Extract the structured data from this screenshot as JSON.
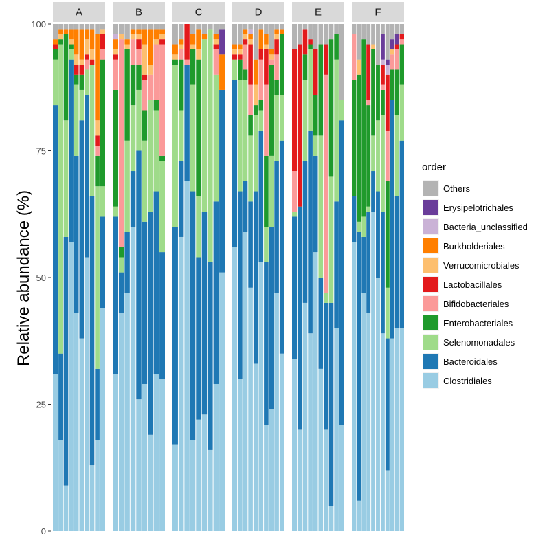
{
  "chart_data": {
    "type": "stacked-bar",
    "facets": [
      "A",
      "B",
      "C",
      "D",
      "E",
      "F"
    ],
    "ylabel": "Relative abundance (%)",
    "xlabel": "",
    "ylim": [
      0,
      100
    ],
    "yticks": [
      0,
      25,
      50,
      75,
      100
    ],
    "legend": {
      "title": "order",
      "position": "right",
      "entries": [
        {
          "name": "Others",
          "color": "#B3B3B3"
        },
        {
          "name": "Erysipelotrichales",
          "color": "#6A3D9A"
        },
        {
          "name": "Bacteria_unclassified",
          "color": "#CAB2D6"
        },
        {
          "name": "Burkholderiales",
          "color": "#FF7F00"
        },
        {
          "name": "Verrucomicrobiales",
          "color": "#FDBF6F"
        },
        {
          "name": "Lactobacillales",
          "color": "#E31A1C"
        },
        {
          "name": "Bifidobacteriales",
          "color": "#FB9A99"
        },
        {
          "name": "Enterobacteriales",
          "color": "#1F9A2C"
        },
        {
          "name": "Selenomonadales",
          "color": "#9FDB8A"
        },
        {
          "name": "Bacteroidales",
          "color": "#1F78B4"
        },
        {
          "name": "Clostridiales",
          "color": "#99CCE3"
        }
      ]
    },
    "stack_order": [
      "Clostridiales",
      "Bacteroidales",
      "Selenomonadales",
      "Enterobacteriales",
      "Bifidobacteriales",
      "Lactobacillales",
      "Verrucomicrobiales",
      "Burkholderiales",
      "Bacteria_unclassified",
      "Erysipelotrichales",
      "Others"
    ],
    "samples": {
      "A": [
        [
          31,
          53,
          9,
          2,
          0,
          1,
          0,
          1,
          0,
          0,
          3
        ],
        [
          18,
          17,
          61,
          1,
          0,
          0,
          1,
          1,
          0,
          0,
          1
        ],
        [
          9,
          49,
          23,
          17,
          0,
          0,
          0,
          1,
          0,
          0,
          1
        ],
        [
          57,
          36,
          2,
          1,
          0,
          0,
          1,
          2,
          0,
          0,
          1
        ],
        [
          43,
          31,
          14,
          2,
          0,
          2,
          2,
          5,
          0,
          0,
          1
        ],
        [
          38,
          43,
          6,
          3,
          0,
          2,
          1,
          6,
          0,
          0,
          1
        ],
        [
          54,
          32,
          5,
          0,
          2,
          1,
          3,
          2,
          0,
          0,
          1
        ],
        [
          13,
          53,
          26,
          0,
          0,
          1,
          2,
          4,
          0,
          0,
          1
        ],
        [
          18,
          14,
          36,
          6,
          2,
          2,
          3,
          17,
          0,
          0,
          2
        ],
        [
          44,
          18,
          6,
          25,
          2,
          3,
          1,
          0,
          0,
          0,
          1
        ]
      ],
      "B": [
        [
          31,
          31,
          2,
          23,
          6,
          1,
          1,
          2,
          1,
          0,
          2
        ],
        [
          43,
          8,
          3,
          2,
          41,
          0,
          1,
          0,
          0,
          0,
          2
        ],
        [
          47,
          12,
          18,
          18,
          0,
          0,
          1,
          1,
          0,
          0,
          3
        ],
        [
          60,
          11,
          13,
          8,
          5,
          0,
          1,
          1,
          0,
          0,
          1
        ],
        [
          26,
          49,
          12,
          5,
          3,
          2,
          1,
          1,
          0,
          0,
          1
        ],
        [
          29,
          32,
          16,
          6,
          6,
          1,
          6,
          3,
          0,
          0,
          1
        ],
        [
          19,
          44,
          22,
          0,
          5,
          0,
          2,
          7,
          0,
          0,
          1
        ],
        [
          31,
          36,
          16,
          2,
          11,
          0,
          1,
          2,
          0,
          0,
          1
        ],
        [
          30,
          25,
          18,
          1,
          22,
          1,
          1,
          1,
          0,
          0,
          1
        ]
      ],
      "C": [
        [
          17,
          43,
          32,
          1,
          0,
          0,
          1,
          2,
          0,
          0,
          4
        ],
        [
          58,
          15,
          10,
          10,
          2,
          0,
          1,
          1,
          0,
          0,
          3
        ],
        [
          69,
          23,
          0,
          0,
          1,
          7,
          0,
          0,
          0,
          0,
          0
        ],
        [
          18,
          49,
          21,
          7,
          0,
          0,
          1,
          2,
          0,
          0,
          2
        ],
        [
          22,
          32,
          12,
          27,
          0,
          0,
          2,
          4,
          0,
          0,
          1
        ],
        [
          23,
          40,
          34,
          0,
          0,
          0,
          0,
          1,
          0,
          0,
          2
        ],
        [
          16,
          37,
          46,
          0,
          0,
          0,
          0,
          0,
          0,
          0,
          1
        ],
        [
          29,
          36,
          25,
          0,
          5,
          1,
          1,
          1,
          0,
          0,
          2
        ],
        [
          51,
          36,
          0,
          0,
          0,
          0,
          0,
          7,
          0,
          5,
          1
        ]
      ],
      "D": [
        [
          56,
          33,
          4,
          0,
          0,
          1,
          1,
          1,
          0,
          0,
          4
        ],
        [
          30,
          37,
          22,
          4,
          0,
          1,
          1,
          1,
          0,
          0,
          4
        ],
        [
          59,
          10,
          20,
          2,
          5,
          1,
          1,
          1,
          0,
          0,
          1
        ],
        [
          48,
          17,
          13,
          4,
          6,
          8,
          1,
          1,
          1,
          0,
          1
        ],
        [
          33,
          34,
          15,
          2,
          0,
          0,
          4,
          5,
          0,
          0,
          7
        ],
        [
          53,
          26,
          4,
          2,
          8,
          2,
          0,
          4,
          0,
          0,
          1
        ],
        [
          21,
          32,
          7,
          14,
          14,
          7,
          1,
          2,
          0,
          0,
          2
        ],
        [
          24,
          36,
          14,
          18,
          1,
          0,
          1,
          1,
          0,
          0,
          5
        ],
        [
          47,
          26,
          13,
          3,
          5,
          3,
          1,
          1,
          0,
          0,
          1
        ],
        [
          35,
          42,
          9,
          12,
          0,
          0,
          0,
          1,
          0,
          0,
          1
        ]
      ],
      "E": [
        [
          34,
          28,
          1,
          0,
          8,
          24,
          0,
          0,
          0,
          0,
          5
        ],
        [
          20,
          44,
          0,
          0,
          0,
          32,
          0,
          0,
          0,
          0,
          4
        ],
        [
          45,
          28,
          16,
          5,
          0,
          5,
          0,
          0,
          0,
          0,
          1
        ],
        [
          39,
          40,
          16,
          1,
          0,
          1,
          0,
          0,
          0,
          0,
          3
        ],
        [
          55,
          19,
          4,
          8,
          0,
          9,
          0,
          0,
          0,
          0,
          5
        ],
        [
          32,
          18,
          28,
          18,
          0,
          0,
          0,
          0,
          0,
          0,
          4
        ],
        [
          20,
          25,
          2,
          0,
          43,
          6,
          0,
          0,
          0,
          0,
          4
        ],
        [
          5,
          40,
          25,
          27,
          0,
          0,
          0,
          0,
          0,
          0,
          3
        ],
        [
          40,
          25,
          28,
          5,
          0,
          0,
          0,
          0,
          0,
          0,
          2
        ],
        [
          21,
          60,
          4,
          0,
          0,
          0,
          0,
          0,
          0,
          0,
          15
        ]
      ],
      "F": [
        [
          57,
          9,
          0,
          23,
          9,
          0,
          0,
          0,
          0,
          0,
          2
        ],
        [
          6,
          53,
          2,
          29,
          0,
          0,
          3,
          0,
          0,
          0,
          7
        ],
        [
          47,
          11,
          4,
          35,
          0,
          0,
          0,
          0,
          0,
          0,
          3
        ],
        [
          43,
          20,
          1,
          20,
          1,
          11,
          0,
          0,
          0,
          0,
          4
        ],
        [
          63,
          8,
          7,
          17,
          0,
          0,
          1,
          0,
          0,
          0,
          4
        ],
        [
          50,
          17,
          14,
          11,
          0,
          0,
          0,
          0,
          0,
          0,
          8
        ],
        [
          39,
          24,
          19,
          5,
          1,
          4,
          0,
          0,
          1,
          5,
          2
        ],
        [
          12,
          26,
          10,
          21,
          10,
          11,
          0,
          0,
          2,
          1,
          7
        ],
        [
          38,
          47,
          0,
          6,
          3,
          0,
          1,
          0,
          0,
          2,
          3
        ],
        [
          40,
          26,
          16,
          9,
          4,
          1,
          0,
          0,
          0,
          2,
          2
        ],
        [
          40,
          37,
          11,
          8,
          1,
          1,
          0,
          0,
          0,
          0,
          2
        ]
      ]
    }
  }
}
